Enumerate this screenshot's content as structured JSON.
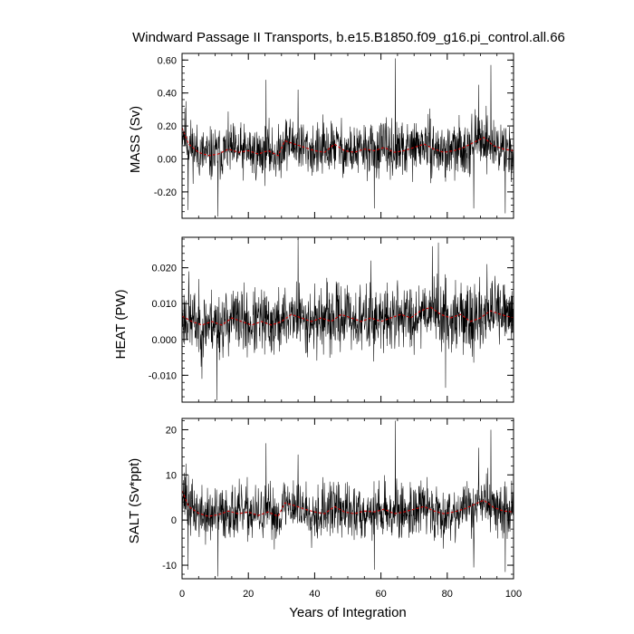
{
  "chart_data": {
    "type": "line",
    "title": "Windward Passage II Transports, b.e15.B1850.f09_g16.pi_control.all.66",
    "xlabel": "Years of Integration",
    "xlim": [
      0,
      100
    ],
    "x_ticks": [
      "0",
      "20",
      "40",
      "60",
      "80",
      "100"
    ],
    "grid": false,
    "legend": "none",
    "colors": {
      "raw": "#000000",
      "smoothed": "#cc0000"
    },
    "panels": [
      {
        "ylabel": "MASS (Sv)",
        "ylim": [
          -0.36,
          0.64
        ],
        "y_ticks": [
          "-0.20",
          "0.00",
          "0.20",
          "0.40",
          "0.60"
        ],
        "y_tick_values": [
          -0.2,
          0.0,
          0.2,
          0.4,
          0.6
        ],
        "minor_step": 0.04,
        "raw": {
          "mean": 0.04,
          "amplitude": 0.08,
          "seed": 11,
          "spikes": [
            {
              "x": 1.2,
              "y": 0.35
            },
            {
              "x": 1.8,
              "y": -0.31
            },
            {
              "x": 10.8,
              "y": -0.35
            },
            {
              "x": 25.3,
              "y": 0.48
            },
            {
              "x": 35.0,
              "y": 0.42
            },
            {
              "x": 42.5,
              "y": 0.27
            },
            {
              "x": 58.0,
              "y": -0.3
            },
            {
              "x": 64.3,
              "y": 0.61
            },
            {
              "x": 89.5,
              "y": 0.45
            },
            {
              "x": 93.2,
              "y": 0.57
            },
            {
              "x": 97.5,
              "y": -0.33
            },
            {
              "x": 88.0,
              "y": -0.3
            }
          ]
        },
        "smoothed": [
          [
            0,
            0.19
          ],
          [
            2,
            0.09
          ],
          [
            5,
            0.04
          ],
          [
            8,
            0.02
          ],
          [
            11,
            0.03
          ],
          [
            14,
            0.06
          ],
          [
            17,
            0.04
          ],
          [
            20,
            0.05
          ],
          [
            23,
            0.03
          ],
          [
            26,
            0.05
          ],
          [
            29,
            0.02
          ],
          [
            31,
            0.11
          ],
          [
            34,
            0.09
          ],
          [
            37,
            0.07
          ],
          [
            40,
            0.05
          ],
          [
            43,
            0.04
          ],
          [
            46,
            0.09
          ],
          [
            49,
            0.05
          ],
          [
            52,
            0.04
          ],
          [
            55,
            0.06
          ],
          [
            58,
            0.05
          ],
          [
            61,
            0.07
          ],
          [
            64,
            0.04
          ],
          [
            67,
            0.05
          ],
          [
            70,
            0.07
          ],
          [
            73,
            0.09
          ],
          [
            76,
            0.06
          ],
          [
            79,
            0.04
          ],
          [
            82,
            0.05
          ],
          [
            85,
            0.07
          ],
          [
            88,
            0.1
          ],
          [
            91,
            0.13
          ],
          [
            94,
            0.08
          ],
          [
            97,
            0.06
          ],
          [
            100,
            0.05
          ]
        ]
      },
      {
        "ylabel": "HEAT (PW)",
        "ylim": [
          -0.0175,
          0.0285
        ],
        "y_ticks": [
          "-0.010",
          "0.000",
          "0.010",
          "0.020"
        ],
        "y_tick_values": [
          -0.01,
          0.0,
          0.01,
          0.02
        ],
        "minor_step": 0.002,
        "raw": {
          "mean": 0.0055,
          "amplitude": 0.0045,
          "seed": 23,
          "spikes": [
            {
              "x": 10.5,
              "y": -0.017
            },
            {
              "x": 35.0,
              "y": 0.028
            },
            {
              "x": 75.5,
              "y": 0.026
            },
            {
              "x": 77.3,
              "y": 0.027
            },
            {
              "x": 79.5,
              "y": -0.0135
            },
            {
              "x": 6.0,
              "y": -0.011
            },
            {
              "x": 57.0,
              "y": 0.022
            },
            {
              "x": 92.0,
              "y": 0.021
            },
            {
              "x": 2.0,
              "y": 0.019
            }
          ]
        },
        "smoothed": [
          [
            0,
            0.0065
          ],
          [
            3,
            0.005
          ],
          [
            6,
            0.004
          ],
          [
            9,
            0.005
          ],
          [
            12,
            0.004
          ],
          [
            15,
            0.006
          ],
          [
            18,
            0.005
          ],
          [
            21,
            0.004
          ],
          [
            24,
            0.005
          ],
          [
            27,
            0.004
          ],
          [
            30,
            0.005
          ],
          [
            33,
            0.007
          ],
          [
            36,
            0.006
          ],
          [
            39,
            0.005
          ],
          [
            42,
            0.006
          ],
          [
            45,
            0.005
          ],
          [
            48,
            0.007
          ],
          [
            51,
            0.006
          ],
          [
            54,
            0.005
          ],
          [
            57,
            0.006
          ],
          [
            60,
            0.005
          ],
          [
            63,
            0.006
          ],
          [
            66,
            0.007
          ],
          [
            69,
            0.006
          ],
          [
            72,
            0.008
          ],
          [
            75,
            0.009
          ],
          [
            78,
            0.007
          ],
          [
            81,
            0.006
          ],
          [
            84,
            0.007
          ],
          [
            87,
            0.005
          ],
          [
            90,
            0.006
          ],
          [
            93,
            0.008
          ],
          [
            96,
            0.007
          ],
          [
            100,
            0.006
          ]
        ]
      },
      {
        "ylabel": "SALT (Sv*ppt)",
        "ylim": [
          -13,
          22.5
        ],
        "y_ticks": [
          "-10",
          "0",
          "10",
          "20"
        ],
        "y_tick_values": [
          -10,
          0,
          10,
          20
        ],
        "minor_step": 2,
        "raw": {
          "mean": 1.5,
          "amplitude": 3.0,
          "seed": 37,
          "spikes": [
            {
              "x": 1.2,
              "y": 12.5
            },
            {
              "x": 1.8,
              "y": -11.0
            },
            {
              "x": 10.8,
              "y": -12.5
            },
            {
              "x": 25.3,
              "y": 17.0
            },
            {
              "x": 35.0,
              "y": 14.5
            },
            {
              "x": 42.5,
              "y": 9.5
            },
            {
              "x": 58.0,
              "y": -11.0
            },
            {
              "x": 64.3,
              "y": 22.0
            },
            {
              "x": 89.5,
              "y": 16.0
            },
            {
              "x": 93.2,
              "y": 20.0
            },
            {
              "x": 97.5,
              "y": -11.5
            },
            {
              "x": 88.0,
              "y": -10.5
            }
          ]
        },
        "smoothed": [
          [
            0,
            6.5
          ],
          [
            2,
            3.0
          ],
          [
            5,
            1.5
          ],
          [
            8,
            0.8
          ],
          [
            11,
            1.2
          ],
          [
            14,
            2.0
          ],
          [
            17,
            1.4
          ],
          [
            20,
            1.8
          ],
          [
            23,
            1.0
          ],
          [
            26,
            1.8
          ],
          [
            29,
            0.8
          ],
          [
            31,
            3.8
          ],
          [
            34,
            3.2
          ],
          [
            37,
            2.4
          ],
          [
            40,
            1.8
          ],
          [
            43,
            1.4
          ],
          [
            46,
            3.0
          ],
          [
            49,
            1.8
          ],
          [
            52,
            1.4
          ],
          [
            55,
            2.0
          ],
          [
            58,
            1.8
          ],
          [
            61,
            2.4
          ],
          [
            64,
            1.4
          ],
          [
            67,
            1.8
          ],
          [
            70,
            2.4
          ],
          [
            73,
            3.0
          ],
          [
            76,
            2.0
          ],
          [
            79,
            1.4
          ],
          [
            82,
            1.8
          ],
          [
            85,
            2.4
          ],
          [
            88,
            3.4
          ],
          [
            91,
            4.4
          ],
          [
            94,
            2.8
          ],
          [
            97,
            2.0
          ],
          [
            100,
            1.8
          ]
        ]
      }
    ]
  }
}
